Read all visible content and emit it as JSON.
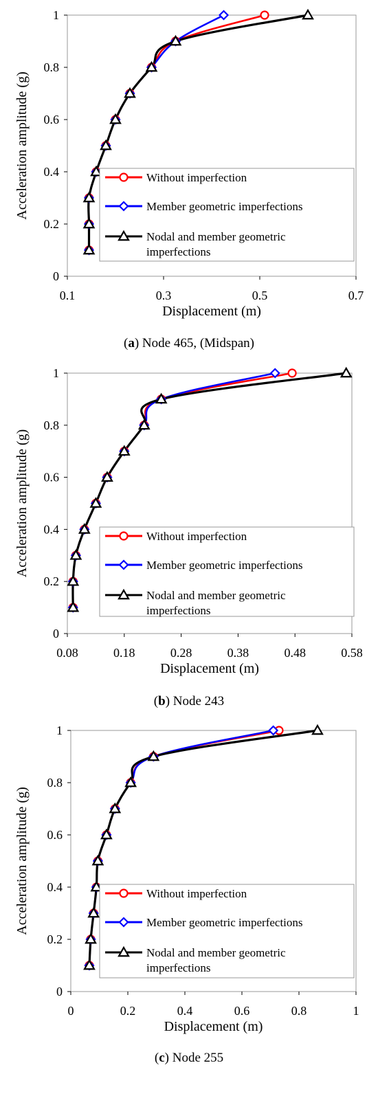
{
  "colors": {
    "without": "#ff0000",
    "member": "#0000ff",
    "nodal": "#000000",
    "frame": "#999999"
  },
  "legend": {
    "without": "Without  imperfection",
    "member": "Member geometric imperfections",
    "nodal_line1": "Nodal and member geometric",
    "nodal_line2": "imperfections"
  },
  "chart_data": [
    {
      "type": "line",
      "caption_bold": "a",
      "caption_rest": ") Node 465, (Midspan)",
      "xlabel": "Displacement (m)",
      "ylabel": "Acceleration amplitude (g)",
      "xlim": [
        0.1,
        0.7
      ],
      "ylim": [
        0,
        1
      ],
      "xticks": [
        0.1,
        0.3,
        0.5,
        0.7
      ],
      "xtick_labels": [
        "0.1",
        "0.3",
        "0.5",
        "0.7"
      ],
      "yticks": [
        0,
        0.2,
        0.4,
        0.6,
        0.8,
        1
      ],
      "ytick_labels": [
        "0",
        "0.2",
        "0.4",
        "0.6",
        "0.8",
        "1"
      ],
      "y": [
        0.1,
        0.2,
        0.3,
        0.4,
        0.5,
        0.6,
        0.7,
        0.8,
        0.9,
        1.0
      ],
      "series": [
        {
          "name": "Without  imperfection",
          "key": "without",
          "marker": "circle",
          "x": [
            0.145,
            0.145,
            0.145,
            0.16,
            0.18,
            0.2,
            0.23,
            0.275,
            0.325,
            0.51
          ]
        },
        {
          "name": "Member geometric imperfections",
          "key": "member",
          "marker": "diamond",
          "x": [
            0.145,
            0.145,
            0.145,
            0.16,
            0.18,
            0.2,
            0.23,
            0.275,
            0.325,
            0.425
          ]
        },
        {
          "name": "Nodal and member geometric imperfections",
          "key": "nodal",
          "marker": "triangle",
          "x": [
            0.145,
            0.145,
            0.145,
            0.16,
            0.18,
            0.2,
            0.23,
            0.275,
            0.325,
            0.6
          ]
        }
      ],
      "legend_position": "lower-right"
    },
    {
      "type": "line",
      "caption_bold": "b",
      "caption_rest": ") Node 243",
      "xlabel": "Displacement (m)",
      "ylabel": "Acceleration amplitude (g)",
      "xlim": [
        0.08,
        0.58
      ],
      "ylim": [
        0,
        1
      ],
      "xticks": [
        0.08,
        0.18,
        0.28,
        0.38,
        0.48,
        0.58
      ],
      "xtick_labels": [
        "0.08",
        "0.18",
        "0.28",
        "0.38",
        "0.48",
        "0.58"
      ],
      "yticks": [
        0,
        0.2,
        0.4,
        0.6,
        0.8,
        1
      ],
      "ytick_labels": [
        "0",
        "0.2",
        "0.4",
        "0.6",
        "0.8",
        "1"
      ],
      "y": [
        0.1,
        0.2,
        0.3,
        0.4,
        0.5,
        0.6,
        0.7,
        0.8,
        0.9,
        1.0
      ],
      "series": [
        {
          "name": "Without  imperfection",
          "key": "without",
          "marker": "circle",
          "x": [
            0.09,
            0.09,
            0.095,
            0.11,
            0.13,
            0.15,
            0.18,
            0.215,
            0.245,
            0.475
          ]
        },
        {
          "name": "Member geometric imperfections",
          "key": "member",
          "marker": "diamond",
          "x": [
            0.09,
            0.09,
            0.095,
            0.11,
            0.13,
            0.15,
            0.18,
            0.215,
            0.245,
            0.445
          ]
        },
        {
          "name": "Nodal and member geometric imperfections",
          "key": "nodal",
          "marker": "triangle",
          "x": [
            0.09,
            0.09,
            0.095,
            0.11,
            0.13,
            0.15,
            0.18,
            0.215,
            0.245,
            0.57
          ]
        }
      ],
      "legend_position": "lower-right"
    },
    {
      "type": "line",
      "caption_bold": "c",
      "caption_rest": ") Node 255",
      "xlabel": "Displacement (m)",
      "ylabel": "Acceleration amplitude (g)",
      "xlim": [
        0,
        1
      ],
      "ylim": [
        0,
        1
      ],
      "xticks": [
        0,
        0.2,
        0.4,
        0.6,
        0.8,
        1
      ],
      "xtick_labels": [
        "0",
        "0.2",
        "0.4",
        "0.6",
        "0.8",
        "1"
      ],
      "yticks": [
        0,
        0.2,
        0.4,
        0.6,
        0.8,
        1
      ],
      "ytick_labels": [
        "0",
        "0.2",
        "0.4",
        "0.6",
        "0.8",
        "1"
      ],
      "y": [
        0.1,
        0.2,
        0.3,
        0.4,
        0.5,
        0.6,
        0.7,
        0.8,
        0.9,
        1.0
      ],
      "series": [
        {
          "name": "Without  imperfection",
          "key": "without",
          "marker": "circle",
          "x": [
            0.065,
            0.07,
            0.08,
            0.09,
            0.095,
            0.125,
            0.155,
            0.21,
            0.29,
            0.73
          ]
        },
        {
          "name": "Member geometric imperfections",
          "key": "member",
          "marker": "diamond",
          "x": [
            0.065,
            0.07,
            0.08,
            0.09,
            0.095,
            0.125,
            0.155,
            0.21,
            0.29,
            0.71
          ]
        },
        {
          "name": "Nodal and member geometric imperfections",
          "key": "nodal",
          "marker": "triangle",
          "x": [
            0.065,
            0.07,
            0.08,
            0.09,
            0.095,
            0.125,
            0.155,
            0.21,
            0.29,
            0.865
          ]
        }
      ],
      "legend_position": "lower-right"
    }
  ]
}
